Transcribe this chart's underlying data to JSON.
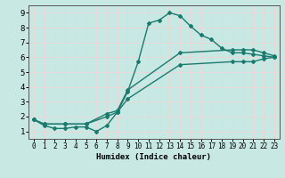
{
  "xlabel": "Humidex (Indice chaleur)",
  "xlim": [
    -0.5,
    23.5
  ],
  "ylim": [
    0.5,
    9.5
  ],
  "xticks": [
    0,
    1,
    2,
    3,
    4,
    5,
    6,
    7,
    8,
    9,
    10,
    11,
    12,
    13,
    14,
    15,
    16,
    17,
    18,
    19,
    20,
    21,
    22,
    23
  ],
  "yticks": [
    1,
    2,
    3,
    4,
    5,
    6,
    7,
    8,
    9
  ],
  "background_color": "#c8e8e4",
  "grid_color": "#b0d8d4",
  "line_color": "#1a7a6e",
  "line1_x": [
    0,
    1,
    2,
    3,
    4,
    5,
    6,
    7,
    8,
    9,
    10,
    11,
    12,
    13,
    14,
    15,
    16,
    17,
    18,
    19,
    20,
    21,
    22,
    23
  ],
  "line1_y": [
    1.8,
    1.4,
    1.2,
    1.2,
    1.3,
    1.3,
    1.0,
    1.4,
    2.3,
    3.7,
    5.7,
    8.3,
    8.5,
    9.0,
    8.8,
    8.1,
    7.5,
    7.2,
    6.6,
    6.3,
    6.3,
    6.2,
    6.1,
    6.0
  ],
  "line2_x": [
    0,
    1,
    3,
    5,
    7,
    8,
    9,
    14,
    19,
    20,
    21,
    22,
    23
  ],
  "line2_y": [
    1.8,
    1.5,
    1.5,
    1.5,
    2.2,
    2.4,
    3.8,
    6.3,
    6.5,
    6.5,
    6.5,
    6.3,
    6.1
  ],
  "line3_x": [
    0,
    1,
    3,
    5,
    7,
    8,
    9,
    14,
    19,
    20,
    21,
    22,
    23
  ],
  "line3_y": [
    1.8,
    1.5,
    1.5,
    1.5,
    2.0,
    2.3,
    3.2,
    5.5,
    5.7,
    5.7,
    5.7,
    5.9,
    6.0
  ]
}
